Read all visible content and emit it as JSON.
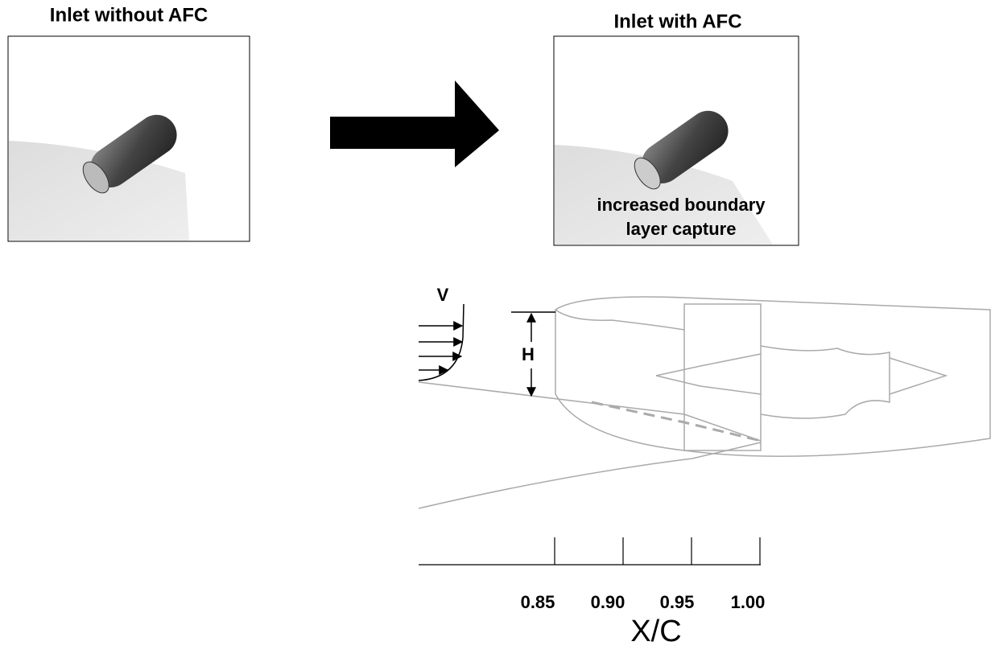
{
  "panels": [
    {
      "title": "Inlet without AFC"
    },
    {
      "title": "Inlet with AFC",
      "caption": [
        "increased boundary",
        "layer capture"
      ]
    }
  ],
  "profile": {
    "velocity_label": "V",
    "height_label": "H"
  },
  "scale": {
    "tick_labels": [
      "0.85",
      "0.90",
      "0.95",
      "1.00"
    ],
    "axis_label": "X/C"
  }
}
